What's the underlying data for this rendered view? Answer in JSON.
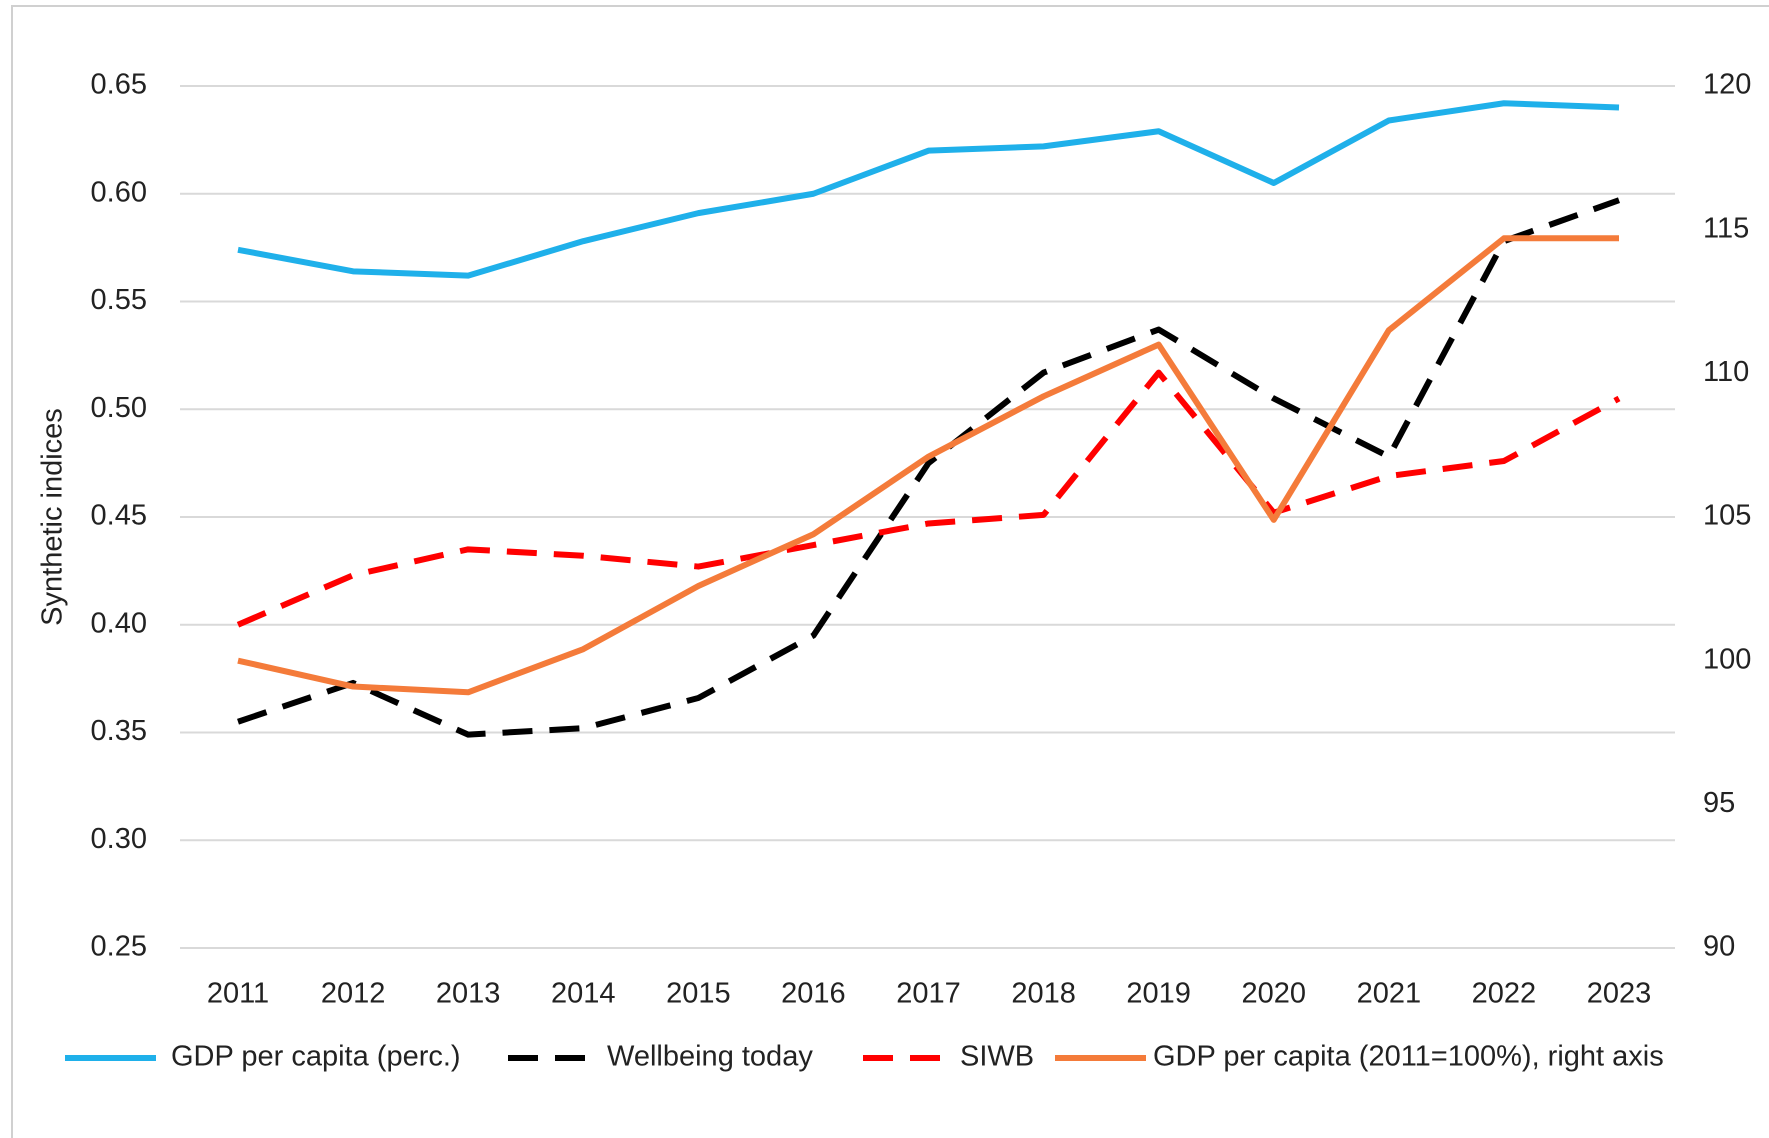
{
  "chart_data": {
    "type": "line",
    "y_label": "Synthetic indices",
    "categories": [
      "2011",
      "2012",
      "2013",
      "2014",
      "2015",
      "2016",
      "2017",
      "2018",
      "2019",
      "2020",
      "2021",
      "2022",
      "2023"
    ],
    "ylim": [
      0.25,
      0.65
    ],
    "yticks": [
      0.25,
      {
        "value": 0.3,
        "label": "0.30"
      },
      0.35,
      {
        "value": 0.4,
        "label": "0.40"
      },
      0.45,
      {
        "value": 0.5,
        "label": "0.50"
      },
      0.55,
      {
        "value": 0.6,
        "label": "0.60"
      },
      0.65
    ],
    "y2lim": [
      90,
      120
    ],
    "y2ticks": [
      90,
      95,
      100,
      105,
      110,
      115,
      120
    ],
    "grid": true,
    "legend": "bottom",
    "series": [
      {
        "name": "GDP per capita (perc.)",
        "color": "#1fb0ea",
        "dashed": false,
        "values": [
          0.574,
          0.564,
          0.562,
          0.578,
          0.591,
          0.6,
          0.62,
          0.622,
          0.629,
          0.605,
          0.634,
          0.642,
          0.64
        ]
      },
      {
        "name": "Wellbeing today",
        "color": "#000000",
        "dashed": true,
        "values": [
          0.355,
          0.373,
          0.349,
          0.352,
          0.366,
          0.395,
          0.475,
          0.517,
          0.537,
          0.505,
          0.478,
          0.578,
          0.597
        ]
      },
      {
        "name": "SIWB",
        "color": "#ff0000",
        "dashed": true,
        "values": [
          0.4,
          0.423,
          0.435,
          0.432,
          0.427,
          0.437,
          0.447,
          0.451,
          0.517,
          0.452,
          0.469,
          0.476,
          0.505
        ]
      },
      {
        "name": "GDP per capita (2011=100%), right axis",
        "color": "#f47b3a",
        "dashed": false,
        "axis": "y2",
        "values": [
          100.0,
          99.1,
          98.9,
          100.4,
          102.6,
          104.4,
          107.1,
          109.2,
          111.0,
          104.9,
          111.5,
          114.7,
          114.7
        ]
      }
    ]
  }
}
